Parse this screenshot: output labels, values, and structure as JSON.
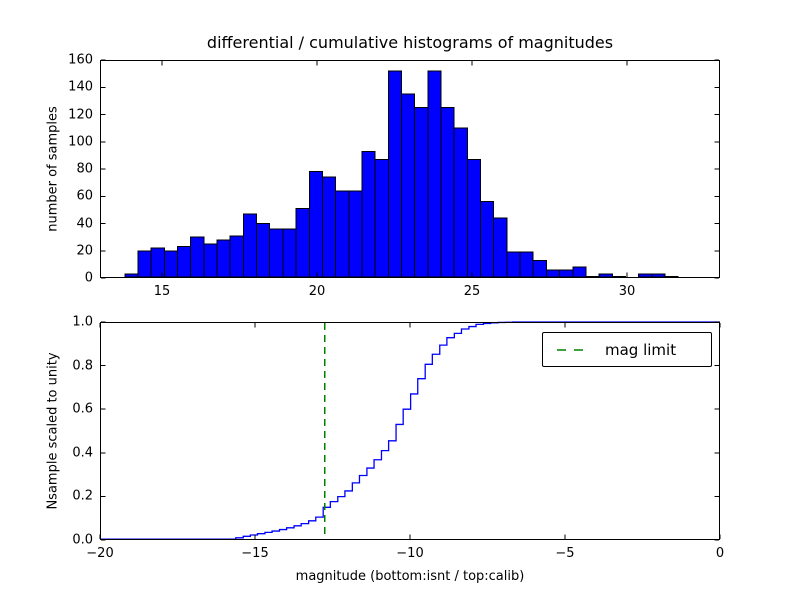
{
  "figure": {
    "title": "differential / cumulative histograms of magnitudes",
    "xlabel": "magnitude (bottom:isnt / top:calib)",
    "background_color": "#ffffff",
    "axes_edge_color": "#000000"
  },
  "chart_data": [
    {
      "type": "bar",
      "name": "differential-histogram-top",
      "title": "differential / cumulative histograms of magnitudes",
      "ylabel": "number of samples",
      "xlim": [
        13,
        33
      ],
      "ylim": [
        0,
        160
      ],
      "xtick_values": [
        15,
        20,
        25,
        30
      ],
      "xtick_labels": [
        "15",
        "20",
        "25",
        "30"
      ],
      "ytick_values": [
        0,
        20,
        40,
        60,
        80,
        100,
        120,
        140,
        160
      ],
      "ytick_labels": [
        "0",
        "20",
        "40",
        "60",
        "80",
        "100",
        "120",
        "140",
        "160"
      ],
      "grid": false,
      "bar_color": "#0000ff",
      "bar_edge_color": "#000000",
      "bin_start": 13.8,
      "bin_width": 0.425,
      "counts": [
        3,
        20,
        22,
        20,
        23,
        30,
        25,
        28,
        31,
        47,
        40,
        36,
        36,
        51,
        78,
        74,
        64,
        64,
        93,
        87,
        152,
        135,
        125,
        152,
        125,
        110,
        87,
        56,
        44,
        19,
        19,
        13,
        6,
        6,
        8,
        1,
        3,
        1,
        0,
        3,
        3,
        1
      ]
    },
    {
      "type": "line",
      "name": "cumulative-histogram-bottom",
      "ylabel": "Nsample scaled to unity",
      "xlabel": "magnitude (bottom:isnt / top:calib)",
      "xlim": [
        -20,
        0
      ],
      "ylim": [
        0.0,
        1.0
      ],
      "xtick_values": [
        -20,
        -15,
        -10,
        -5,
        0
      ],
      "xtick_labels": [
        "−20",
        "−15",
        "−10",
        "−5",
        "0"
      ],
      "ytick_values": [
        0.0,
        0.2,
        0.4,
        0.6,
        0.8,
        1.0
      ],
      "ytick_labels": [
        "0.0",
        "0.2",
        "0.4",
        "0.6",
        "0.8",
        "1.0"
      ],
      "grid": false,
      "line_color": "#0000ff",
      "line_style": "steps",
      "start_value": 0.004,
      "steps": [
        [
          -15.62,
          0.01
        ],
        [
          -15.38,
          0.017
        ],
        [
          -15.15,
          0.023
        ],
        [
          -14.92,
          0.029
        ],
        [
          -14.68,
          0.035
        ],
        [
          -14.45,
          0.041
        ],
        [
          -14.21,
          0.048
        ],
        [
          -13.98,
          0.056
        ],
        [
          -13.74,
          0.065
        ],
        [
          -13.51,
          0.075
        ],
        [
          -13.27,
          0.088
        ],
        [
          -13.04,
          0.105
        ],
        [
          -12.8,
          0.15
        ],
        [
          -12.57,
          0.176
        ],
        [
          -12.33,
          0.199
        ],
        [
          -12.1,
          0.225
        ],
        [
          -11.86,
          0.262
        ],
        [
          -11.63,
          0.296
        ],
        [
          -11.39,
          0.33
        ],
        [
          -11.16,
          0.368
        ],
        [
          -10.92,
          0.41
        ],
        [
          -10.69,
          0.455
        ],
        [
          -10.45,
          0.53
        ],
        [
          -10.22,
          0.6
        ],
        [
          -9.98,
          0.67
        ],
        [
          -9.75,
          0.74
        ],
        [
          -9.51,
          0.806
        ],
        [
          -9.28,
          0.852
        ],
        [
          -9.04,
          0.894
        ],
        [
          -8.81,
          0.928
        ],
        [
          -8.57,
          0.948
        ],
        [
          -8.34,
          0.968
        ],
        [
          -8.1,
          0.979
        ],
        [
          -7.87,
          0.989
        ],
        [
          -7.63,
          0.993
        ],
        [
          -7.4,
          0.996
        ],
        [
          -7.16,
          0.998
        ],
        [
          -6.93,
          0.999
        ],
        [
          -6.69,
          1.0
        ]
      ],
      "mag_limit_line": {
        "x": -12.75,
        "color": "#008000",
        "style": "dashed"
      },
      "legend": {
        "position": "upper right",
        "entries": [
          {
            "label": "mag limit",
            "color": "#008000",
            "linestyle": "dashed"
          }
        ]
      }
    }
  ]
}
